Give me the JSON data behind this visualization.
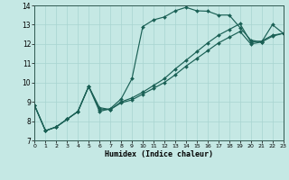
{
  "xlabel": "Humidex (Indice chaleur)",
  "background_color": "#c5e8e4",
  "grid_color": "#a8d4d0",
  "line_color": "#1a6055",
  "xlim": [
    0,
    23
  ],
  "ylim": [
    7,
    14
  ],
  "xticks": [
    0,
    1,
    2,
    3,
    4,
    5,
    6,
    7,
    8,
    9,
    10,
    11,
    12,
    13,
    14,
    15,
    16,
    17,
    18,
    19,
    20,
    21,
    22,
    23
  ],
  "yticks": [
    7,
    8,
    9,
    10,
    11,
    12,
    13,
    14
  ],
  "curve1_x": [
    0,
    1,
    2,
    3,
    4,
    5,
    6,
    7,
    8,
    9,
    10,
    11,
    12,
    13,
    14,
    15,
    16,
    17,
    18,
    19,
    20,
    21,
    22,
    23
  ],
  "curve1_y": [
    8.8,
    7.5,
    7.7,
    8.1,
    8.5,
    9.8,
    8.5,
    8.65,
    9.15,
    10.2,
    12.9,
    13.25,
    13.4,
    13.72,
    13.9,
    13.72,
    13.7,
    13.5,
    13.5,
    12.85,
    12.2,
    12.1,
    13.0,
    12.55
  ],
  "curve2_x": [
    0,
    1,
    2,
    3,
    4,
    5,
    6,
    7,
    8,
    9,
    10,
    11,
    12,
    13,
    14,
    15,
    16,
    17,
    18,
    19,
    20,
    21,
    22,
    23
  ],
  "curve2_y": [
    8.8,
    7.5,
    7.7,
    8.1,
    8.5,
    9.8,
    8.7,
    8.6,
    9.0,
    9.2,
    9.5,
    9.85,
    10.2,
    10.7,
    11.15,
    11.6,
    12.05,
    12.45,
    12.75,
    13.05,
    12.1,
    12.15,
    12.45,
    12.55
  ],
  "curve3_x": [
    0,
    1,
    2,
    3,
    4,
    5,
    6,
    7,
    8,
    9,
    10,
    11,
    12,
    13,
    14,
    15,
    16,
    17,
    18,
    19,
    20,
    21,
    22,
    23
  ],
  "curve3_y": [
    8.8,
    7.5,
    7.7,
    8.1,
    8.5,
    9.8,
    8.6,
    8.6,
    8.95,
    9.1,
    9.4,
    9.7,
    10.0,
    10.4,
    10.85,
    11.25,
    11.65,
    12.05,
    12.35,
    12.65,
    12.0,
    12.1,
    12.4,
    12.55
  ]
}
